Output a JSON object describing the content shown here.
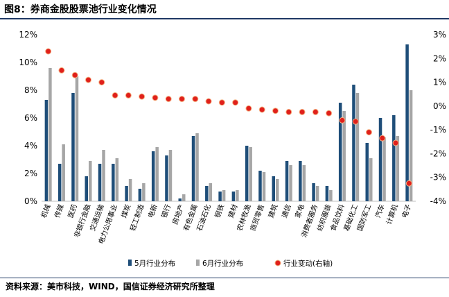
{
  "figure_title": "图8：券商金股股票池行业变化情况",
  "source": "资料来源：美市科技，WIND，国信证券经济研究所整理",
  "chart_data": {
    "type": "bar",
    "title": "券商金股股票池行业变化情况",
    "categories": [
      "机械",
      "传媒",
      "医药",
      "非银行金融",
      "交通运输",
      "电力公用事业",
      "煤炭",
      "轻工制造",
      "电新",
      "银行",
      "房地产",
      "有色金属",
      "石油石化",
      "钢铁",
      "建材",
      "农林牧渔",
      "商贸零售",
      "建筑",
      "通信",
      "家电",
      "消费者服务",
      "纺织服装",
      "食品饮料",
      "基础化工",
      "国防军工",
      "汽车",
      "计算机",
      "电子"
    ],
    "series": [
      {
        "name": "5月行业分布",
        "axis": "left",
        "type": "bar",
        "color": "#1f4e79",
        "values": [
          7.3,
          2.7,
          7.8,
          1.8,
          2.7,
          2.7,
          1.1,
          0.9,
          3.6,
          3.3,
          0.2,
          4.7,
          1.1,
          0.7,
          0.7,
          4.0,
          2.2,
          1.8,
          2.9,
          2.9,
          1.3,
          1.1,
          7.1,
          8.4,
          4.2,
          6.0,
          6.2,
          11.3
        ]
      },
      {
        "name": "6月行业分布",
        "axis": "left",
        "type": "bar",
        "color": "#a6a6a6",
        "values": [
          9.6,
          4.1,
          9.0,
          2.9,
          3.7,
          3.1,
          1.6,
          1.3,
          3.9,
          3.7,
          0.5,
          4.9,
          1.3,
          0.8,
          0.8,
          3.9,
          2.1,
          1.6,
          2.6,
          2.6,
          1.1,
          0.8,
          6.5,
          7.8,
          3.1,
          4.6,
          4.7,
          8.0
        ]
      },
      {
        "name": "行业变动(右轴)",
        "axis": "right",
        "type": "scatter",
        "color": "#e0201b",
        "values": [
          2.3,
          1.5,
          1.3,
          1.1,
          1.0,
          0.45,
          0.45,
          0.4,
          0.35,
          0.3,
          0.3,
          0.3,
          0.2,
          0.15,
          0.15,
          -0.1,
          -0.15,
          -0.2,
          -0.25,
          -0.25,
          -0.25,
          -0.3,
          -0.6,
          -0.65,
          -1.1,
          -1.35,
          -1.55,
          -3.25
        ]
      }
    ],
    "y_left": {
      "ticks": [
        "0%",
        "2%",
        "4%",
        "6%",
        "8%",
        "10%",
        "12%"
      ],
      "ylim": [
        0,
        12
      ]
    },
    "y_right": {
      "ticks": [
        "-4%",
        "-3%",
        "-2%",
        "-1%",
        "0%",
        "1%",
        "2%",
        "3%"
      ],
      "ylim": [
        -4,
        3
      ]
    },
    "legend_position": "bottom"
  }
}
